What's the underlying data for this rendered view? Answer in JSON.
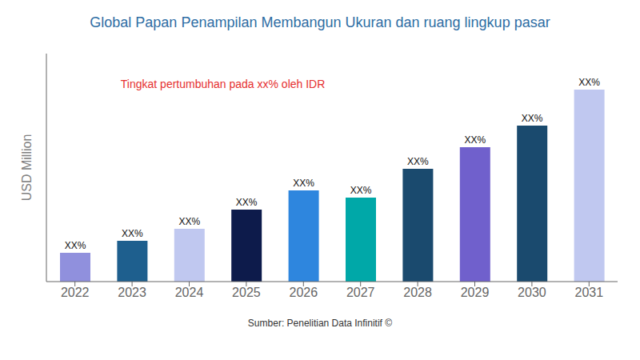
{
  "chart_data": {
    "type": "bar",
    "title": "Global Papan Penampilan Membangun Ukuran dan ruang lingkup pasar",
    "ylabel": "USD Million",
    "annotations": [
      {
        "text": "Tingkat pertumbuhan pada xx% oleh IDR",
        "color": "#e63030"
      }
    ],
    "source": "Sumber: Penelitian Data Infinitif ©",
    "categories": [
      "2022",
      "2023",
      "2024",
      "2025",
      "2026",
      "2027",
      "2028",
      "2029",
      "2030",
      "2031"
    ],
    "values": [
      12,
      17,
      22,
      30,
      38,
      35,
      47,
      56,
      65,
      80
    ],
    "value_labels": [
      "XX%",
      "XX%",
      "XX%",
      "XX%",
      "XX%",
      "XX%",
      "XX%",
      "XX%",
      "XX%",
      "XX%"
    ],
    "data_labels": true,
    "colors": [
      "#9090dd",
      "#1e5f8e",
      "#c0c8f0",
      "#0d1b4b",
      "#2e86de",
      "#00a8a8",
      "#1a4a6e",
      "#7060cc",
      "#1a4a6e",
      "#c0c8f0"
    ],
    "ylim": [
      0,
      95
    ],
    "tick_labels": "x",
    "grid": false
  }
}
